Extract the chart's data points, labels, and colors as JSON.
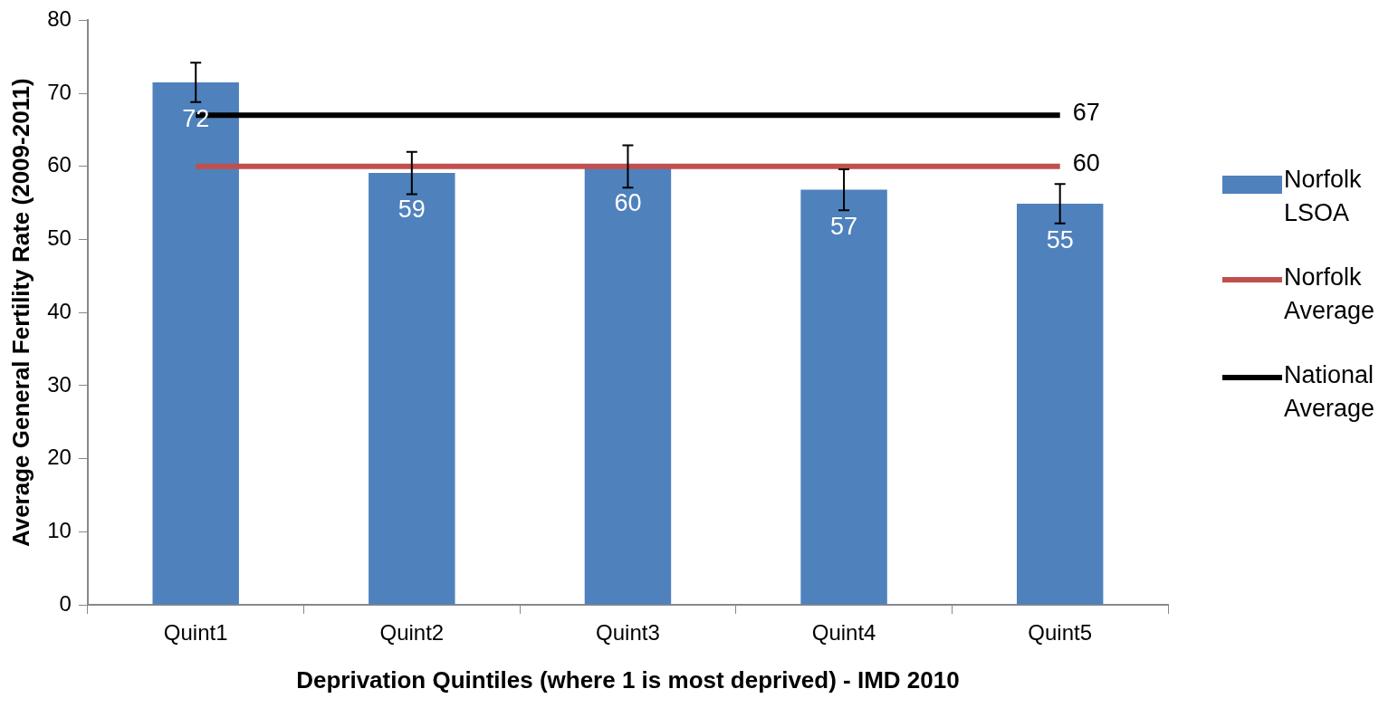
{
  "chart_data": {
    "type": "bar",
    "xlabel": "Deprivation Quintiles (where 1 is most deprived) - IMD 2010",
    "ylabel": "Average General Fertility Rate (2009-2011)",
    "categories": [
      "Quint1",
      "Quint2",
      "Quint3",
      "Quint4",
      "Quint5"
    ],
    "series": [
      {
        "name": "Norfolk LSOA",
        "color": "#4f81bd",
        "values": [
          71.5,
          59.1,
          60,
          56.8,
          54.9
        ],
        "errors": [
          2.7,
          2.9,
          2.9,
          2.8,
          2.7
        ],
        "value_labels": [
          "72",
          "59",
          "60",
          "57",
          "55"
        ]
      },
      {
        "name": "Norfolk Average",
        "type": "line",
        "color": "#c0504d",
        "values": [
          60,
          60,
          60,
          60,
          60
        ],
        "value_labels": [
          null,
          null,
          null,
          null,
          "60"
        ]
      },
      {
        "name": "National Average",
        "type": "line",
        "color": "#000000",
        "values": [
          67,
          67,
          67,
          67,
          67
        ],
        "value_labels": [
          null,
          null,
          null,
          null,
          "67"
        ]
      }
    ],
    "ylim": [
      0,
      80
    ],
    "yticks": [
      0,
      10,
      20,
      30,
      40,
      50,
      60,
      70,
      80
    ],
    "grid": false,
    "legend": "right",
    "marker": "none"
  }
}
